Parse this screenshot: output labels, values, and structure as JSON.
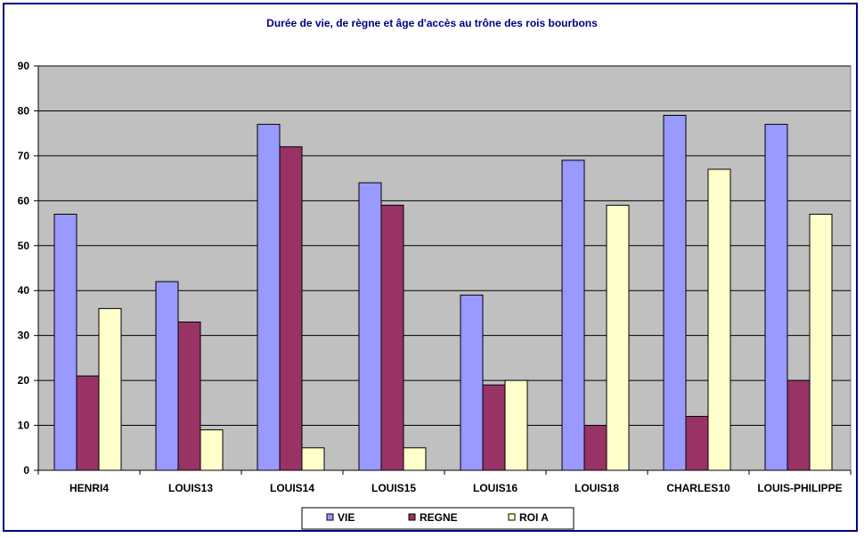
{
  "chart_data": {
    "type": "bar",
    "title": "Durée de vie, de règne et âge d'accès au trône des rois bourbons",
    "xlabel": "",
    "ylabel": "",
    "ylim": [
      0,
      90
    ],
    "yticks": [
      0,
      10,
      20,
      30,
      40,
      50,
      60,
      70,
      80,
      90
    ],
    "categories": [
      "HENRI4",
      "LOUIS13",
      "LOUIS14",
      "LOUIS15",
      "LOUIS16",
      "LOUIS18",
      "CHARLES10",
      "LOUIS-PHILIPPE"
    ],
    "series": [
      {
        "name": "VIE",
        "color": "#9999ff",
        "values": [
          57,
          42,
          77,
          64,
          39,
          69,
          79,
          77
        ]
      },
      {
        "name": "REGNE",
        "color": "#993366",
        "values": [
          21,
          33,
          72,
          59,
          19,
          10,
          12,
          20
        ]
      },
      {
        "name": "ROI A",
        "color": "#ffffcc",
        "values": [
          36,
          9,
          5,
          5,
          20,
          59,
          67,
          57
        ]
      }
    ],
    "grid": true,
    "plot_background": "#c0c0c0",
    "legend_position": "bottom"
  }
}
